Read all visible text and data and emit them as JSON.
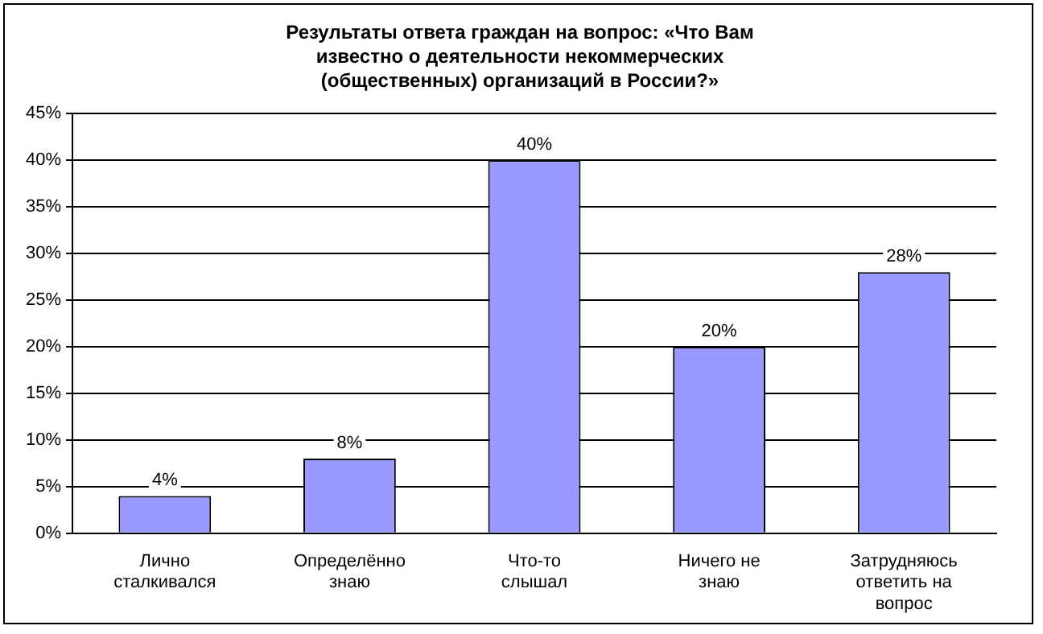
{
  "chart_data": {
    "type": "bar",
    "title": "Результаты ответа граждан на вопрос: «Что Вам известно о деятельности некоммерческих (общественных) организаций в России?»",
    "categories": [
      "Лично сталкивался",
      "Определённо знаю",
      "Что-то слышал",
      "Ничего не знаю",
      "Затрудняюсь ответить на вопрос"
    ],
    "values": [
      4,
      8,
      40,
      20,
      28
    ],
    "value_labels": [
      "4%",
      "8%",
      "40%",
      "20%",
      "28%"
    ],
    "color": "#9999ff",
    "ylim": [
      0,
      45
    ],
    "yticks": [
      {
        "value": 0,
        "label": "0%"
      },
      {
        "value": 5,
        "label": "5%"
      },
      {
        "value": 10,
        "label": "10%"
      },
      {
        "value": 15,
        "label": "15%"
      },
      {
        "value": 20,
        "label": "20%"
      },
      {
        "value": 25,
        "label": "25%"
      },
      {
        "value": 30,
        "label": "30%"
      },
      {
        "value": 35,
        "label": "35%"
      },
      {
        "value": 40,
        "label": "40%"
      },
      {
        "value": 45,
        "label": "45%"
      }
    ],
    "grid": "y",
    "legend": false
  }
}
